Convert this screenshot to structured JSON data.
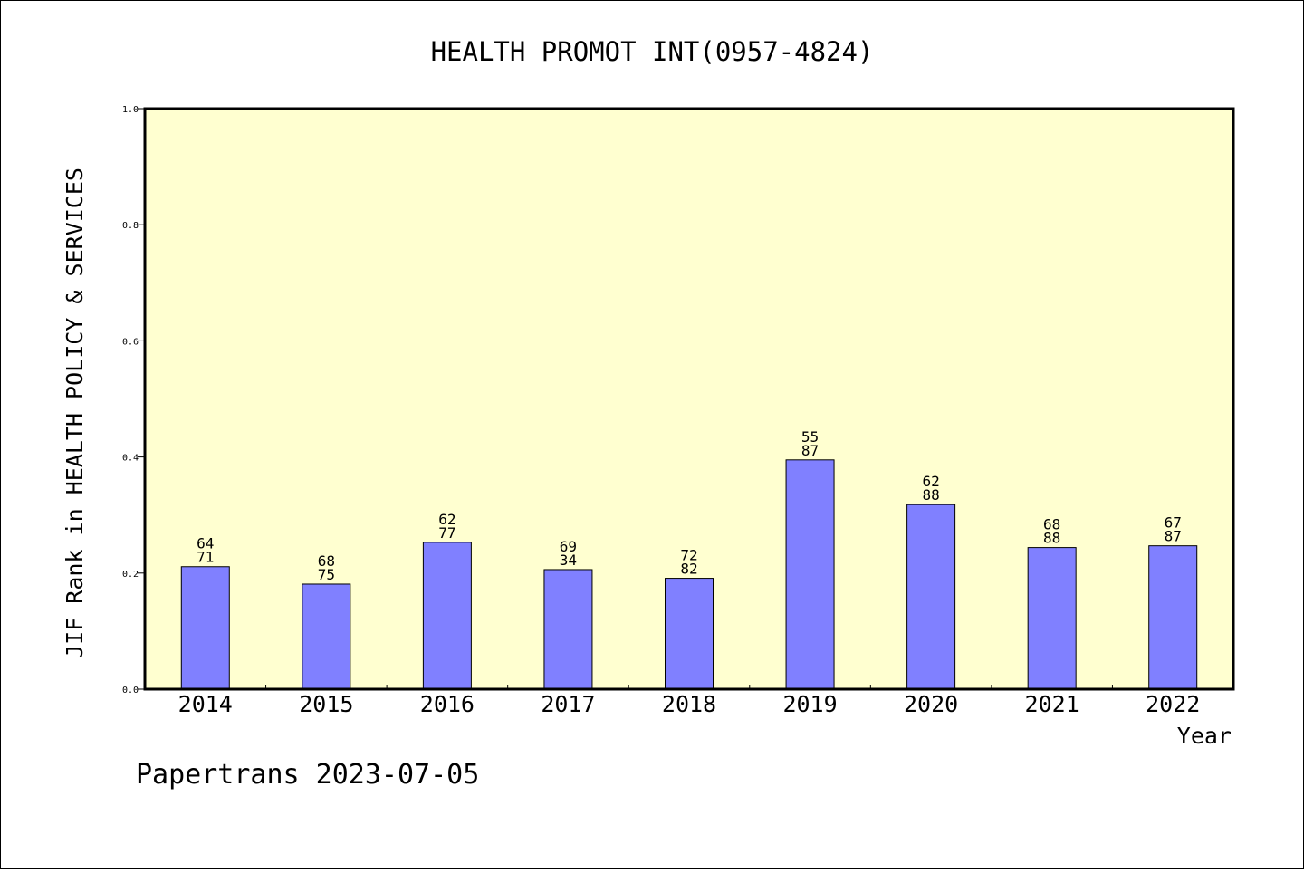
{
  "chart_data": {
    "type": "bar",
    "title": "HEALTH PROMOT INT(0957-4824)",
    "xlabel": "Year",
    "ylabel": "JIF Rank in HEALTH POLICY & SERVICES",
    "ylim": [
      0,
      1.0
    ],
    "yticks": [
      "0.0",
      "0.2",
      "0.4",
      "0.6",
      "0.8",
      "1.0"
    ],
    "categories": [
      "2014",
      "2015",
      "2016",
      "2017",
      "2018",
      "2019",
      "2020",
      "2021",
      "2022"
    ],
    "values": [
      0.211,
      0.181,
      0.253,
      0.206,
      0.191,
      0.395,
      0.318,
      0.244,
      0.247
    ],
    "labels_top": [
      "64",
      "68",
      "62",
      "69",
      "72",
      "55",
      "62",
      "68",
      "67"
    ],
    "labels_bottom": [
      "71",
      "75",
      "77",
      "34",
      "82",
      "87",
      "88",
      "88",
      "87"
    ],
    "colors": {
      "plot_bg": "#ffffd0",
      "bar": "#8080ff",
      "bar_edge": "#000000"
    },
    "grid": false
  },
  "footer": "Papertrans 2023-07-05"
}
